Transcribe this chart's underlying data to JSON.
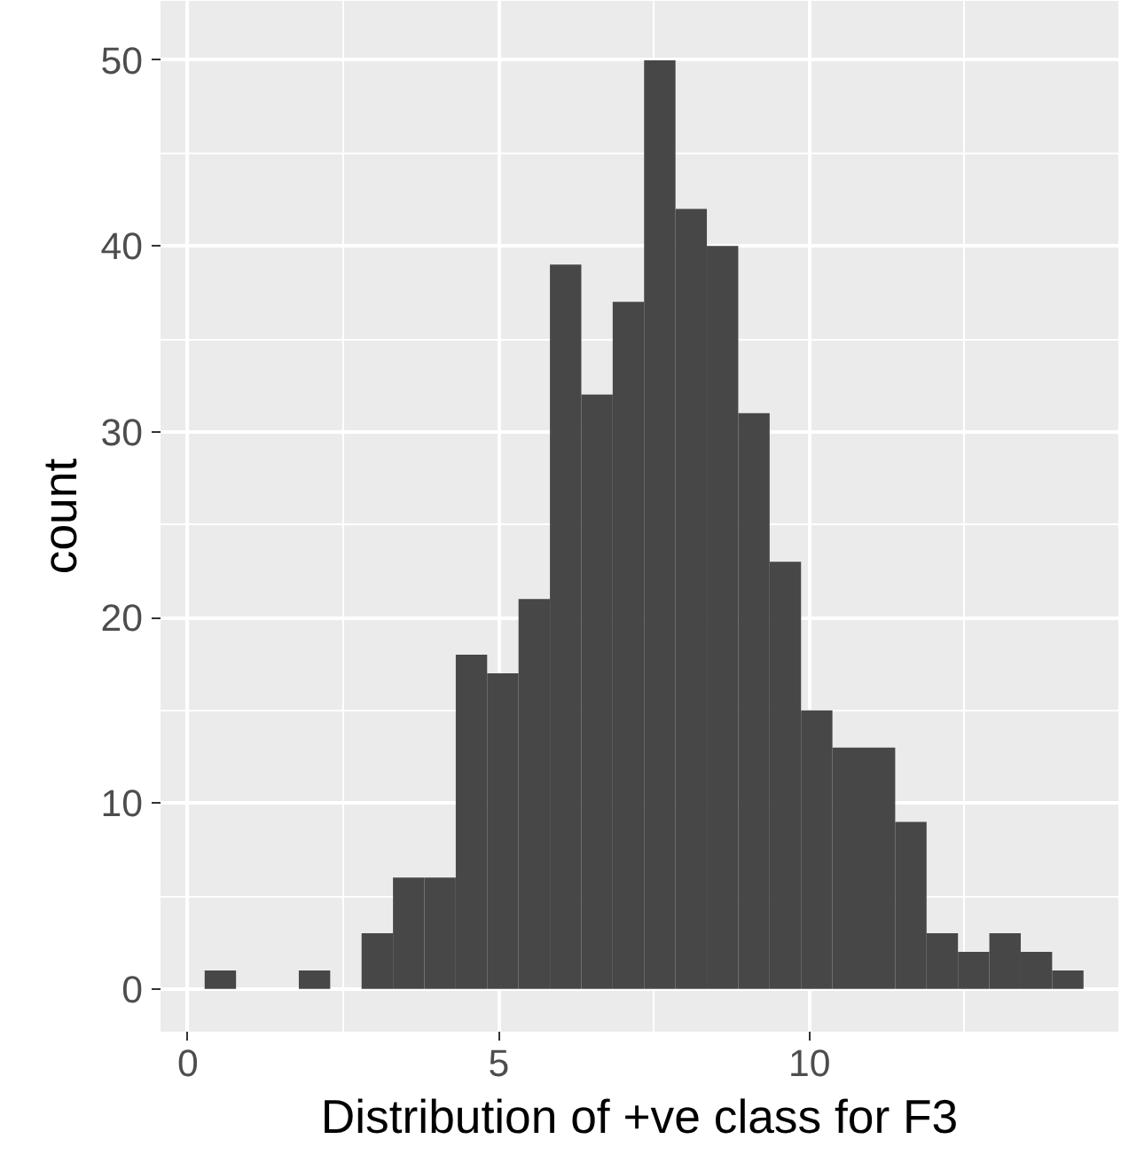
{
  "chart_data": {
    "type": "histogram",
    "xlabel": "Distribution of +ve class for F3",
    "ylabel": "count",
    "bins": [
      0.27,
      0.775,
      1.28,
      1.785,
      2.29,
      2.795,
      3.3,
      3.805,
      4.31,
      4.815,
      5.32,
      5.825,
      6.33,
      6.835,
      7.34,
      7.845,
      8.35,
      8.855,
      9.36,
      9.865,
      10.37,
      10.875,
      11.38,
      11.885,
      12.39,
      12.895,
      13.4,
      13.905,
      14.41
    ],
    "values": [
      1,
      0,
      0,
      1,
      0,
      3,
      6,
      6,
      18,
      17,
      21,
      39,
      32,
      37,
      50,
      42,
      40,
      31,
      23,
      15,
      13,
      13,
      9,
      3,
      2,
      3,
      2,
      1
    ],
    "color": "#474747",
    "xlim": [
      -0.44,
      14.97
    ],
    "ylim": [
      -2.3,
      53.2
    ],
    "xticks": [
      0,
      5,
      10
    ],
    "yticks": [
      0,
      10,
      20,
      30,
      40,
      50
    ],
    "grid": true
  }
}
